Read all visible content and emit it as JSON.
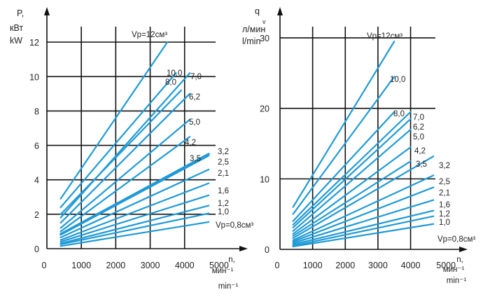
{
  "chart_data": [
    {
      "type": "line",
      "title": "",
      "ylabel_lines": [
        "P,",
        "кВт",
        "kW"
      ],
      "xlabel_lines": [
        "n,",
        "мин⁻¹",
        "min⁻¹"
      ],
      "xlim": [
        0,
        5000
      ],
      "ylim": [
        0,
        13
      ],
      "grid": true,
      "x_ticks": [
        "0",
        "1000",
        "2000",
        "3000",
        "4000",
        "5000"
      ],
      "y_ticks": [
        "0",
        "2",
        "4",
        "6",
        "8",
        "10",
        "12"
      ],
      "series_label_prefix": "V",
      "series_label_sub": "p",
      "series_label_unit": "см³",
      "series": [
        {
          "name": "12",
          "x": [
            400,
            3500
          ],
          "y": [
            2.9,
            12.0
          ],
          "label": "Vp=12см³"
        },
        {
          "name": "10,0",
          "x": [
            400,
            3750
          ],
          "y": [
            2.4,
            10.2
          ],
          "label": "10,0"
        },
        {
          "name": "8,0",
          "x": [
            400,
            3900
          ],
          "y": [
            2.0,
            9.2
          ],
          "label": "8,0"
        },
        {
          "name": "7,0",
          "x": [
            400,
            4150
          ],
          "y": [
            1.8,
            10.2
          ],
          "label": "7,0"
        },
        {
          "name": "6,2",
          "x": [
            400,
            4150
          ],
          "y": [
            1.5,
            9.0
          ],
          "label": "6,2"
        },
        {
          "name": "5,0",
          "x": [
            400,
            4150
          ],
          "y": [
            1.2,
            7.5
          ],
          "label": "5,0"
        },
        {
          "name": "4,2",
          "x": [
            400,
            4150
          ],
          "y": [
            1.0,
            6.5
          ],
          "label": "4,2"
        },
        {
          "name": "3,5",
          "x": [
            400,
            4700
          ],
          "y": [
            0.85,
            5.5
          ],
          "label": "3,5"
        },
        {
          "name": "3,2",
          "x": [
            400,
            4700
          ],
          "y": [
            0.8,
            5.4
          ],
          "label": "3,2"
        },
        {
          "name": "2,5",
          "x": [
            400,
            4700
          ],
          "y": [
            0.65,
            4.6
          ],
          "label": "2,5"
        },
        {
          "name": "2,1",
          "x": [
            400,
            4700
          ],
          "y": [
            0.5,
            3.8
          ],
          "label": "2,1"
        },
        {
          "name": "1,6",
          "x": [
            400,
            4700
          ],
          "y": [
            0.4,
            3.1
          ],
          "label": "1,6"
        },
        {
          "name": "1,2",
          "x": [
            400,
            4700
          ],
          "y": [
            0.3,
            2.5
          ],
          "label": "1,2"
        },
        {
          "name": "1,0",
          "x": [
            400,
            4700
          ],
          "y": [
            0.25,
            2.05
          ],
          "label": "1,0"
        },
        {
          "name": "0,8",
          "x": [
            400,
            4700
          ],
          "y": [
            0.15,
            1.55
          ],
          "label": "Vp=0,8см³"
        }
      ]
    },
    {
      "type": "line",
      "title": "",
      "ylabel_lines": [
        "q",
        "v",
        "л/мин",
        "l/min"
      ],
      "xlabel_lines": [
        "n,",
        "мин⁻¹",
        "min⁻¹"
      ],
      "xlim": [
        0,
        5000
      ],
      "ylim": [
        0,
        32
      ],
      "grid": true,
      "x_ticks": [
        "0",
        "1000",
        "2000",
        "3000",
        "4000",
        "5000"
      ],
      "y_ticks": [
        "0",
        "10",
        "20",
        "30"
      ],
      "series": [
        {
          "name": "12",
          "x": [
            400,
            3500
          ],
          "y": [
            6.0,
            29.5
          ],
          "label": "Vp=12см³"
        },
        {
          "name": "10,0",
          "x": [
            400,
            3500
          ],
          "y": [
            5.0,
            24.5
          ],
          "label": "10,0"
        },
        {
          "name": "8,0",
          "x": [
            400,
            3500
          ],
          "y": [
            4.0,
            19.5
          ],
          "label": "8,0"
        },
        {
          "name": "7,0",
          "x": [
            400,
            4000
          ],
          "y": [
            3.5,
            19.5
          ],
          "label": "7,0"
        },
        {
          "name": "6,2",
          "x": [
            400,
            4000
          ],
          "y": [
            3.1,
            18.5
          ],
          "label": "6,2"
        },
        {
          "name": "5,0",
          "x": [
            400,
            4000
          ],
          "y": [
            2.6,
            17.0
          ],
          "label": "5,0"
        },
        {
          "name": "4,2",
          "x": [
            400,
            4000
          ],
          "y": [
            2.2,
            14.5
          ],
          "label": "4,2"
        },
        {
          "name": "3,5",
          "x": [
            400,
            4000
          ],
          "y": [
            1.9,
            12.5
          ],
          "label": "3,5"
        },
        {
          "name": "3,2",
          "x": [
            400,
            4700
          ],
          "y": [
            1.6,
            13.2
          ],
          "label": "3,2"
        },
        {
          "name": "2,5",
          "x": [
            400,
            4700
          ],
          "y": [
            1.3,
            10.5
          ],
          "label": "2,5"
        },
        {
          "name": "2,1",
          "x": [
            400,
            4700
          ],
          "y": [
            1.1,
            8.8
          ],
          "label": "2,1"
        },
        {
          "name": "1,6",
          "x": [
            400,
            4700
          ],
          "y": [
            0.9,
            7.0
          ],
          "label": "1,6"
        },
        {
          "name": "1,2",
          "x": [
            400,
            4700
          ],
          "y": [
            0.7,
            5.5
          ],
          "label": "1,2"
        },
        {
          "name": "1,0",
          "x": [
            400,
            4700
          ],
          "y": [
            0.5,
            4.7
          ],
          "label": "1,0"
        },
        {
          "name": "0,8",
          "x": [
            400,
            4700
          ],
          "y": [
            0.4,
            3.6
          ],
          "label": "Vp=0,8см³"
        }
      ]
    }
  ],
  "colors": {
    "series_line": "#1f9ad6",
    "grid": "#111111",
    "axis": "#111111",
    "text": "#222222"
  }
}
